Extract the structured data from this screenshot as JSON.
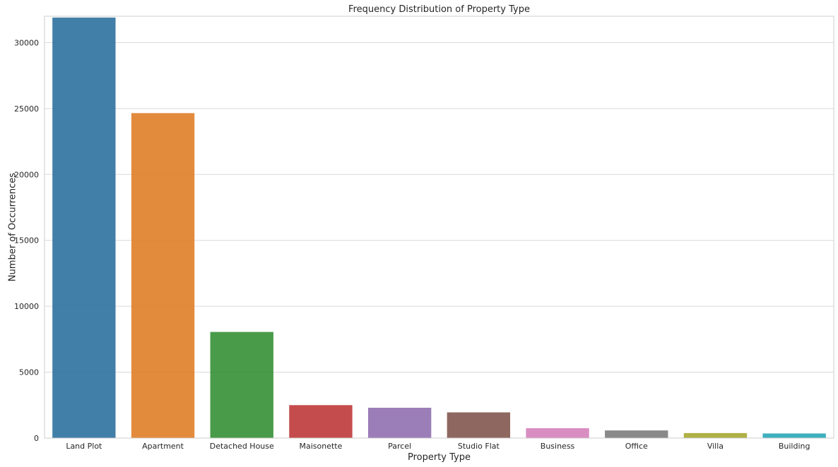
{
  "chart_data": {
    "type": "bar",
    "title": "Frequency Distribution of Property Type",
    "xlabel": "Property Type",
    "ylabel": "Number of Occurrences",
    "categories": [
      "Land Plot",
      "Apartment",
      "Detached House",
      "Maisonette",
      "Parcel",
      "Studio Flat",
      "Business",
      "Office",
      "Villa",
      "Building"
    ],
    "values": [
      31900,
      24650,
      8050,
      2500,
      2300,
      1950,
      750,
      580,
      380,
      350
    ],
    "colors": [
      "#3274a1",
      "#e1812c",
      "#3a923a",
      "#c03d3e",
      "#9372b2",
      "#845b53",
      "#d684bd",
      "#7f7f7f",
      "#a9aa35",
      "#2ea9b8"
    ],
    "ylim": [
      0,
      32000
    ],
    "yticks": [
      0,
      5000,
      10000,
      15000,
      20000,
      25000,
      30000
    ],
    "grid": true,
    "legend": "none"
  }
}
